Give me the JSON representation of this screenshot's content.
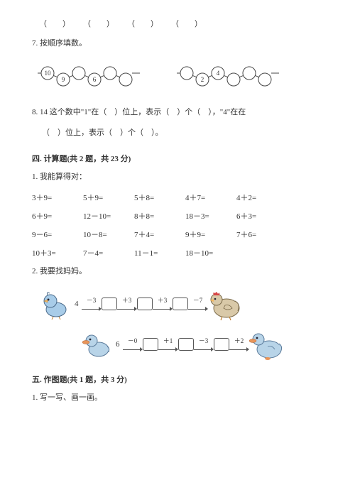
{
  "blank_row": [
    "（　　）",
    "（　　）",
    "（　　）",
    "（　　）"
  ],
  "q7": "7. 按顺序填数。",
  "seq_diagram": {
    "left": {
      "filled": [
        "10",
        "9",
        "",
        "6",
        "",
        ""
      ],
      "colors": {
        "stroke": "#444444",
        "fill": "#ffffff"
      }
    },
    "right": {
      "filled": [
        "",
        "2",
        "4",
        "",
        "",
        ""
      ],
      "colors": {
        "stroke": "#444444",
        "fill": "#ffffff"
      }
    }
  },
  "q8_a": "8. 14 这个数中\"1\"在（　）位上，表示（　）个（　），\"4\"在在",
  "q8_b": "（　）位上，表示（　）个（　）。",
  "sec4": "四. 计算题(共 2 题，共 23 分)",
  "q4_1": "1. 我能算得对：",
  "eq_rows": [
    [
      "3＋9=",
      "5＋9=",
      "5＋8=",
      "4＋7=",
      "4＋2="
    ],
    [
      "6＋9=",
      "12－10=",
      "8＋8=",
      "18－3=",
      "6＋3="
    ],
    [
      "9－6=",
      "10－8=",
      "7＋4=",
      "9＋9=",
      "7＋6="
    ],
    [
      "10＋3=",
      "7－4=",
      "11－1=",
      "18－10=",
      ""
    ]
  ],
  "q4_2": "2. 我要找妈妈。",
  "chain1": {
    "start": "4",
    "ops": [
      "－3",
      "＋3",
      "＋3",
      "－7"
    ]
  },
  "chain2": {
    "start": "6",
    "ops": [
      "－0",
      "＋1",
      "－3",
      "＋2"
    ]
  },
  "sec5": "五. 作图题(共 1 题，共 3 分)",
  "q5_1": "1. 写一写、画一画。",
  "bird_colors": {
    "body": "#a8cce8",
    "beak": "#f4b860",
    "outline": "#4a6a8a"
  },
  "hen_colors": {
    "body": "#d9c9a8",
    "comb": "#d64545",
    "outline": "#7a6a4a"
  },
  "duck_colors": {
    "body": "#b8d4e8",
    "beak": "#e8955a",
    "outline": "#5a7a9a"
  }
}
